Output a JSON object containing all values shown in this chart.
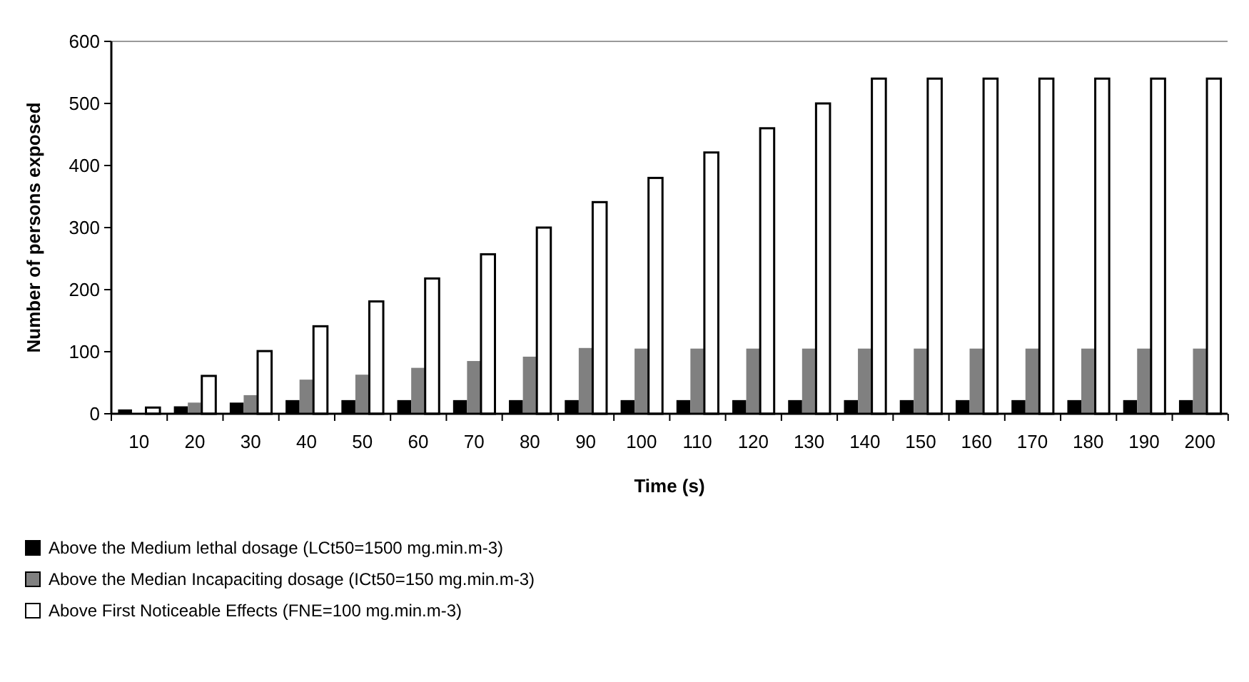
{
  "chart_data": {
    "type": "bar",
    "xlabel": "Time (s)",
    "ylabel": "Number of persons exposed",
    "categories": [
      "10",
      "20",
      "30",
      "40",
      "50",
      "60",
      "70",
      "80",
      "90",
      "100",
      "110",
      "120",
      "130",
      "140",
      "150",
      "160",
      "170",
      "180",
      "190",
      "200"
    ],
    "series": [
      {
        "name": "Above the Medium lethal dosage (LCt50=1500 mg.min.m-3)",
        "color": "#000000",
        "values": [
          7,
          12,
          18,
          22,
          22,
          22,
          22,
          22,
          22,
          22,
          22,
          22,
          22,
          22,
          22,
          22,
          22,
          22,
          22,
          22
        ]
      },
      {
        "name": "Above the Median Incapaciting dosage (ICt50=150 mg.min.m-3)",
        "color": "#808080",
        "values": [
          null,
          18,
          30,
          55,
          63,
          74,
          85,
          92,
          106,
          105,
          105,
          105,
          105,
          105,
          105,
          105,
          105,
          105,
          105,
          105
        ]
      },
      {
        "name": "Above First Noticeable Effects (FNE=100 mg.min.m-3)",
        "color": "#ffffff",
        "values": [
          10,
          61,
          101,
          141,
          181,
          218,
          257,
          300,
          341,
          380,
          421,
          460,
          500,
          540,
          540,
          540,
          540,
          540,
          540,
          540
        ]
      }
    ],
    "ylim": [
      0,
      600
    ],
    "yticks": [
      0,
      100,
      200,
      300,
      400,
      500,
      600
    ],
    "grid": false,
    "legend": "bottom left"
  }
}
